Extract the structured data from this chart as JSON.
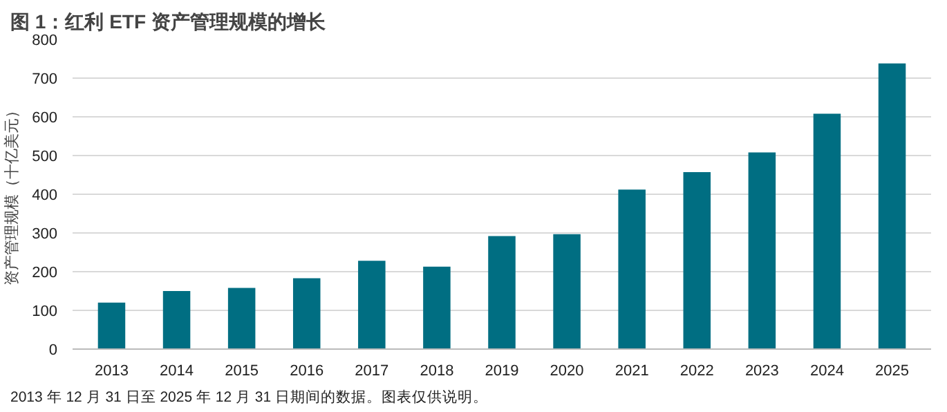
{
  "chart_data": {
    "type": "bar",
    "title": "图 1：红利 ETF 资产管理规模的增长",
    "ylabel": "资产管理规模（十亿美元）",
    "categories": [
      "2013",
      "2014",
      "2015",
      "2016",
      "2017",
      "2018",
      "2019",
      "2020",
      "2021",
      "2022",
      "2023",
      "2024",
      "2025"
    ],
    "values": [
      120,
      150,
      158,
      183,
      228,
      213,
      292,
      297,
      412,
      457,
      508,
      608,
      738
    ],
    "color": "#006e82",
    "ylim": [
      0,
      800
    ],
    "yticks": [
      0,
      100,
      200,
      300,
      400,
      500,
      600,
      700,
      800
    ],
    "grid": "y",
    "annotations": [
      "2013 年 12 月 31 日至 2025 年 12 月 31 日期间的数据。图表仅供说明。"
    ]
  }
}
